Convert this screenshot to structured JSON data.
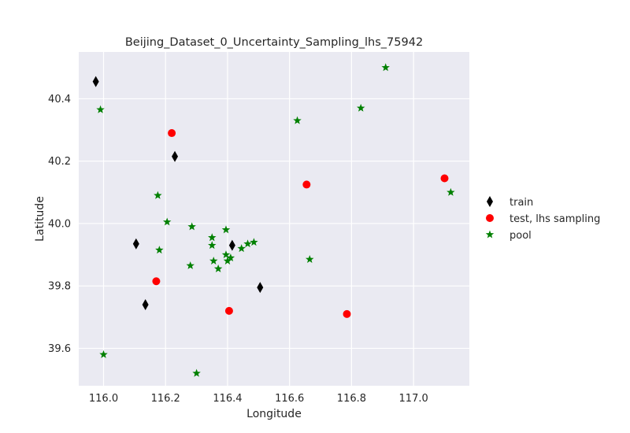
{
  "chart_data": {
    "type": "scatter",
    "title": "Beijing_Dataset_0_Uncertainty_Sampling_lhs_75942",
    "xlabel": "Longitude",
    "ylabel": "Latitude",
    "xlim": [
      115.92,
      117.18
    ],
    "ylim": [
      39.48,
      40.55
    ],
    "xticks": [
      116.0,
      116.2,
      116.4,
      116.6,
      116.8,
      117.0
    ],
    "xtick_labels": [
      "116.0",
      "116.2",
      "116.4",
      "116.6",
      "116.8",
      "117.0"
    ],
    "yticks": [
      39.6,
      39.8,
      40.0,
      40.2,
      40.4
    ],
    "ytick_labels": [
      "39.6",
      "39.8",
      "40.0",
      "40.2",
      "40.4"
    ],
    "grid": true,
    "legend_position": "right, outside plot",
    "series": [
      {
        "name": "train",
        "marker": "thin_diamond",
        "color": "#000000",
        "points": [
          [
            115.975,
            40.455
          ],
          [
            116.23,
            40.215
          ],
          [
            116.105,
            39.935
          ],
          [
            116.135,
            39.74
          ],
          [
            116.415,
            39.93
          ],
          [
            116.505,
            39.795
          ]
        ]
      },
      {
        "name": "test, lhs sampling",
        "marker": "circle",
        "color": "#ff0000",
        "points": [
          [
            116.22,
            40.29
          ],
          [
            116.17,
            39.815
          ],
          [
            116.405,
            39.72
          ],
          [
            116.655,
            40.125
          ],
          [
            116.785,
            39.71
          ],
          [
            117.1,
            40.145
          ]
        ]
      },
      {
        "name": "pool",
        "marker": "star",
        "color": "#008000",
        "points": [
          [
            115.99,
            40.365
          ],
          [
            116.0,
            39.58
          ],
          [
            116.175,
            40.09
          ],
          [
            116.205,
            40.005
          ],
          [
            116.18,
            39.915
          ],
          [
            116.285,
            39.99
          ],
          [
            116.28,
            39.865
          ],
          [
            116.3,
            39.52
          ],
          [
            116.35,
            39.955
          ],
          [
            116.35,
            39.93
          ],
          [
            116.355,
            39.88
          ],
          [
            116.37,
            39.855
          ],
          [
            116.395,
            39.98
          ],
          [
            116.395,
            39.9
          ],
          [
            116.4,
            39.88
          ],
          [
            116.41,
            39.89
          ],
          [
            116.445,
            39.92
          ],
          [
            116.465,
            39.935
          ],
          [
            116.485,
            39.94
          ],
          [
            116.625,
            40.33
          ],
          [
            116.665,
            39.885
          ],
          [
            116.83,
            40.37
          ],
          [
            116.91,
            40.5
          ],
          [
            117.12,
            40.1
          ]
        ]
      }
    ]
  }
}
